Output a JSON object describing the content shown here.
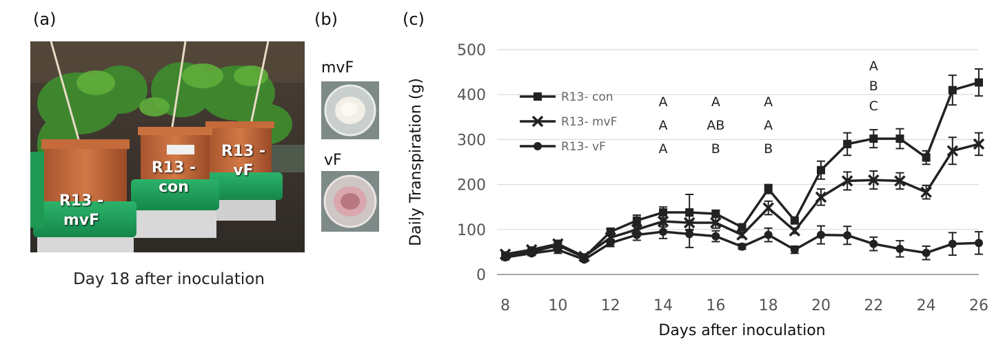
{
  "panels": {
    "a": {
      "label": "(a)",
      "caption": "Day 18 after inoculation",
      "pot_labels": {
        "mvf": [
          "R13 -",
          "mvF"
        ],
        "con": [
          "R13 -",
          "con"
        ],
        "vf": [
          "R13 -",
          "vF"
        ]
      }
    },
    "b": {
      "label": "(b)",
      "dish_labels": {
        "mvf": "mvF",
        "vf": "vF"
      }
    },
    "c": {
      "label": "(c)"
    }
  },
  "colors": {
    "series": "#222222",
    "grid": "#d9d9d9"
  },
  "chart_data": {
    "type": "line",
    "xlabel": "Days after inoculation",
    "ylabel": "Daily Transpiration (g)",
    "xlim": [
      8,
      26
    ],
    "ylim": [
      0,
      500
    ],
    "x_ticks": [
      8,
      10,
      12,
      14,
      16,
      18,
      20,
      22,
      24,
      26
    ],
    "y_ticks": [
      0,
      100,
      200,
      300,
      400,
      500
    ],
    "grid": "horizontal",
    "legend_position": "top-left",
    "x": [
      8,
      9,
      10,
      11,
      12,
      13,
      14,
      15,
      16,
      17,
      18,
      19,
      20,
      21,
      22,
      23,
      24,
      25,
      26
    ],
    "series": [
      {
        "name": "R13- con",
        "marker": "square",
        "values": [
          40,
          50,
          65,
          38,
          95,
          120,
          138,
          138,
          135,
          105,
          190,
          120,
          232,
          290,
          302,
          302,
          260,
          410,
          427
        ],
        "errors": [
          5,
          6,
          8,
          5,
          8,
          12,
          12,
          40,
          8,
          6,
          10,
          6,
          20,
          25,
          20,
          22,
          15,
          33,
          30
        ]
      },
      {
        "name": "R13- mvF",
        "marker": "x",
        "values": [
          45,
          55,
          68,
          40,
          82,
          100,
          118,
          115,
          115,
          88,
          148,
          97,
          172,
          208,
          210,
          208,
          183,
          275,
          290
        ],
        "errors": [
          5,
          6,
          8,
          5,
          8,
          10,
          12,
          15,
          12,
          6,
          15,
          6,
          18,
          20,
          20,
          18,
          15,
          30,
          25
        ]
      },
      {
        "name": "R13- vF",
        "marker": "circle",
        "values": [
          38,
          47,
          55,
          33,
          70,
          88,
          95,
          90,
          85,
          62,
          88,
          55,
          88,
          87,
          68,
          57,
          48,
          68,
          70
        ],
        "errors": [
          5,
          5,
          8,
          4,
          8,
          12,
          15,
          30,
          12,
          6,
          15,
          8,
          20,
          20,
          15,
          18,
          15,
          25,
          25
        ]
      }
    ],
    "annotations": [
      {
        "x": 14,
        "lines": [
          "A",
          "A",
          "A"
        ]
      },
      {
        "x": 16,
        "lines": [
          "A",
          "AB",
          "B"
        ]
      },
      {
        "x": 18,
        "lines": [
          "A",
          "A",
          "B"
        ]
      },
      {
        "x": 22,
        "lines": [
          "A",
          "B",
          "C"
        ]
      }
    ]
  }
}
